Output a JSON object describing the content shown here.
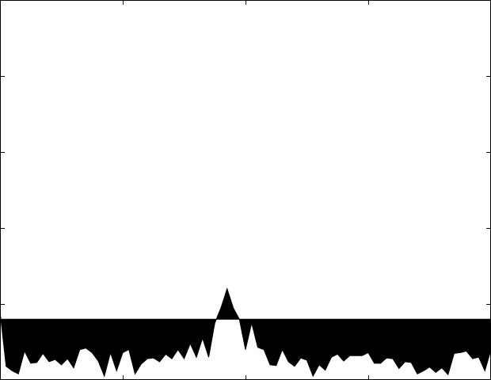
{
  "chart_data": {
    "type": "area",
    "title": "",
    "xlabel": "",
    "ylabel": "",
    "grid": false,
    "legend": "none",
    "xlim": [
      0,
      80
    ],
    "ylim": [
      0,
      5
    ],
    "xticks": [
      0,
      20,
      40,
      60,
      80
    ],
    "yticks": [
      0,
      1,
      2,
      3,
      4,
      5
    ],
    "baseline": 0.8,
    "colors": {
      "fill": "#000000",
      "axes": "#000000",
      "background": "#ffffff"
    },
    "x": [
      0,
      1,
      2,
      3,
      4,
      5,
      6,
      7,
      8,
      9,
      10,
      11,
      12,
      13,
      14,
      15,
      16,
      17,
      18,
      19,
      20,
      21,
      22,
      23,
      24,
      25,
      26,
      27,
      28,
      29,
      30,
      31,
      32,
      33,
      34,
      35,
      36,
      37,
      38,
      39,
      40,
      41,
      42,
      43,
      44,
      45,
      46,
      47,
      48,
      49,
      50,
      51,
      52,
      53,
      54,
      55,
      56,
      57,
      58,
      59,
      60,
      61,
      62,
      63,
      64,
      65,
      66,
      67,
      68,
      69,
      70,
      71,
      72,
      73,
      74,
      75,
      76,
      77,
      78,
      79,
      80
    ],
    "series": [
      {
        "values": [
          0.9,
          0.18,
          0.12,
          0.08,
          0.38,
          0.22,
          0.23,
          0.35,
          0.24,
          0.27,
          0.2,
          0.28,
          0.16,
          0.4,
          0.42,
          0.36,
          0.25,
          0.05,
          0.36,
          0.12,
          0.36,
          0.4,
          0.08,
          0.21,
          0.28,
          0.29,
          0.24,
          0.34,
          0.28,
          0.4,
          0.28,
          0.48,
          0.3,
          0.55,
          0.3,
          0.75,
          0.95,
          1.2,
          0.95,
          0.8,
          0.4,
          0.75,
          0.43,
          0.4,
          0.2,
          0.19,
          0.4,
          0.24,
          0.18,
          0.29,
          0.26,
          0.05,
          0.2,
          0.13,
          0.3,
          0.34,
          0.25,
          0.32,
          0.32,
          0.32,
          0.36,
          0.22,
          0.22,
          0.29,
          0.28,
          0.15,
          0.24,
          0.23,
          0.08,
          0.12,
          0.17,
          0.1,
          0.16,
          0.07,
          0.35,
          0.36,
          0.38,
          0.28,
          0.3,
          0.12,
          0.4
        ]
      }
    ]
  }
}
